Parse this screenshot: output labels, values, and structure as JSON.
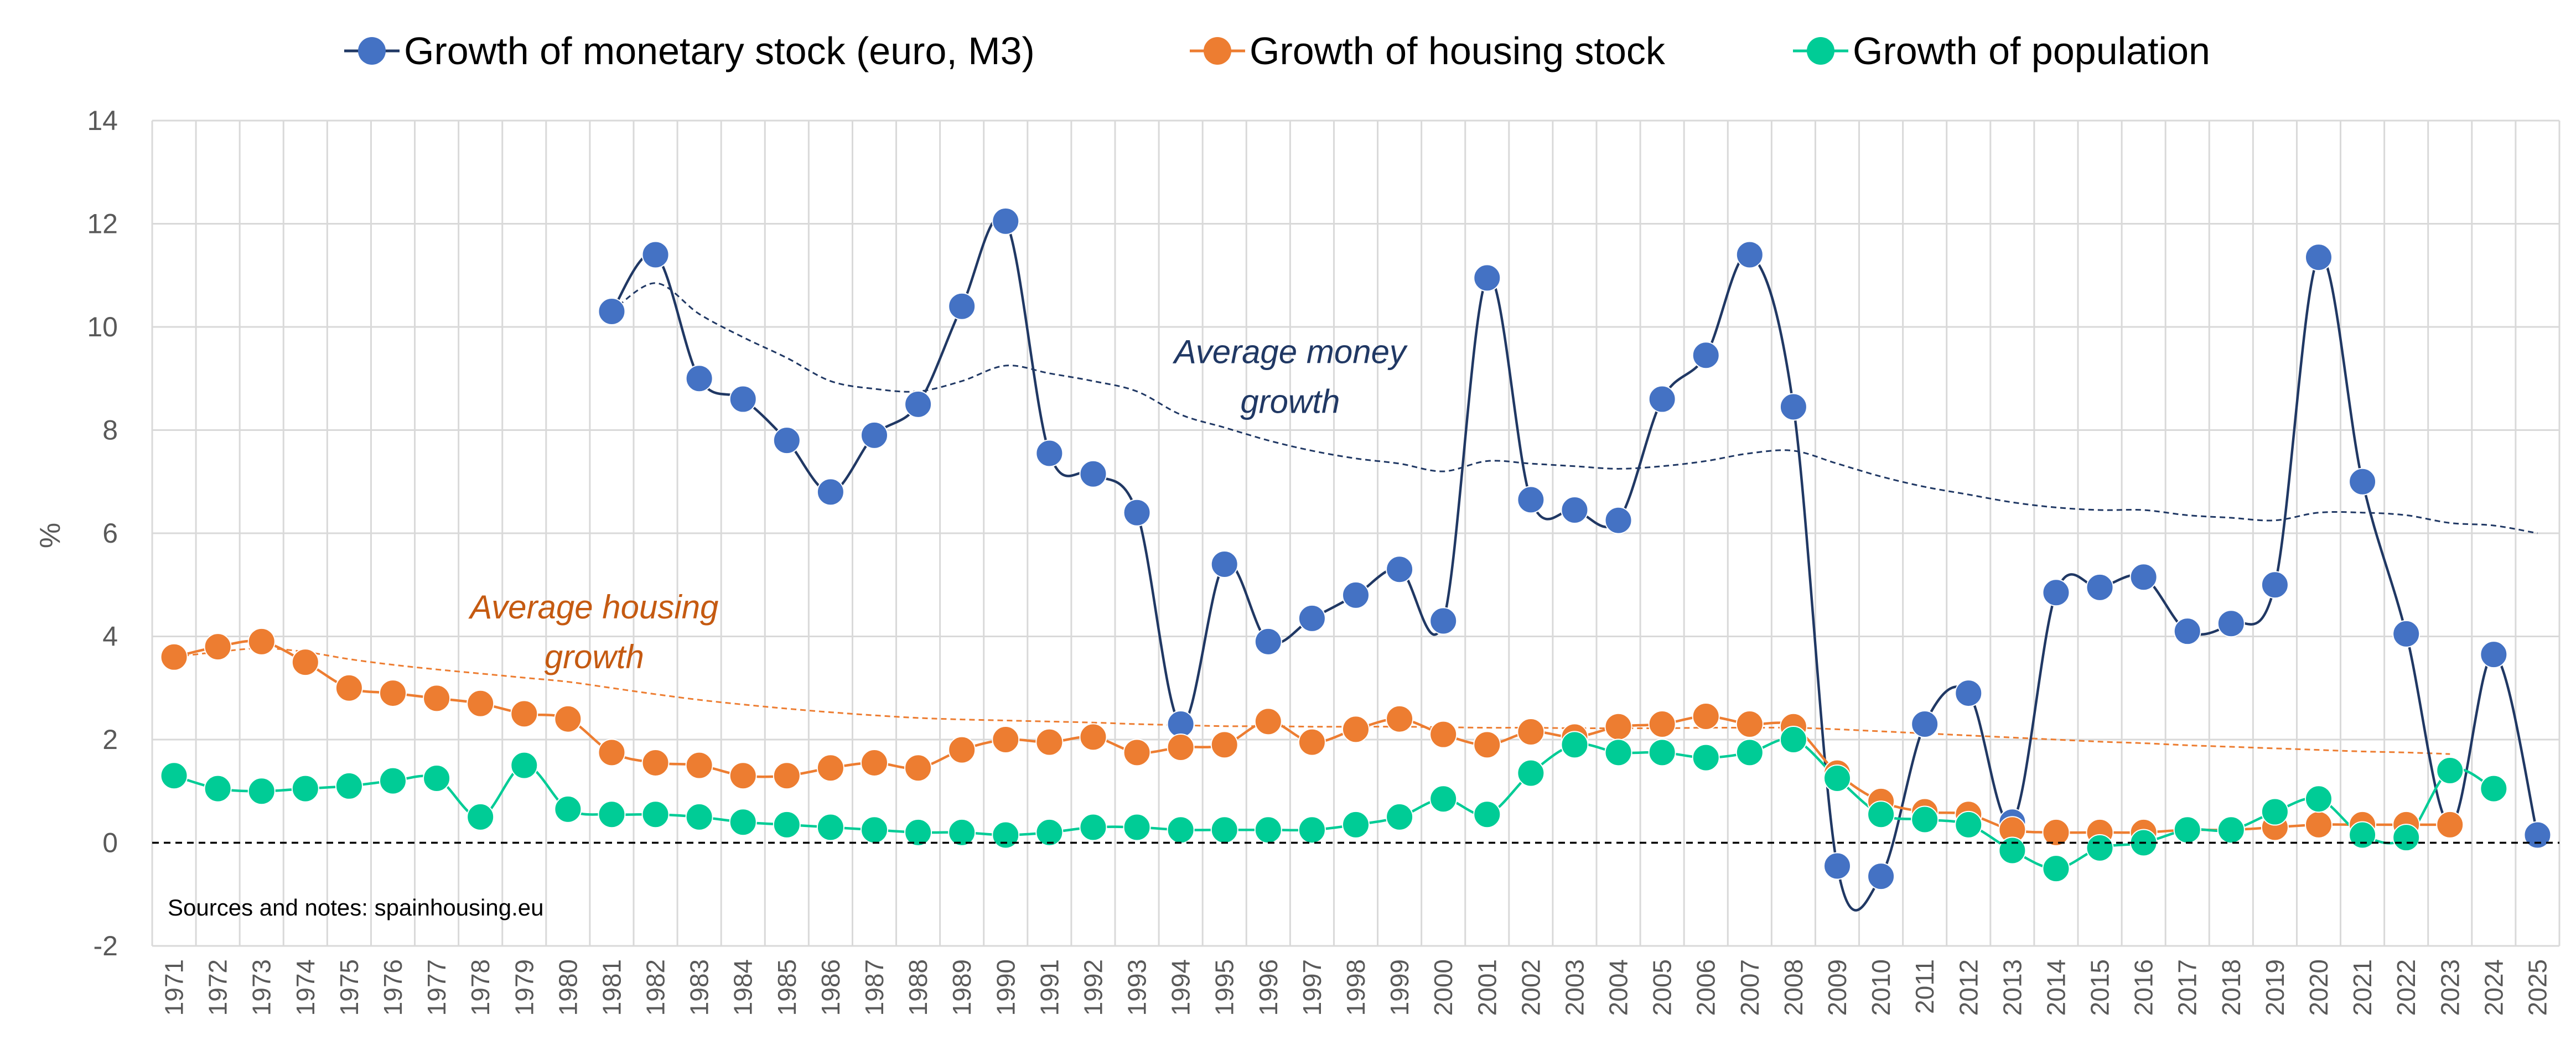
{
  "chart_data": {
    "type": "line",
    "ylabel": "%",
    "xlabel": "",
    "ylim": [
      -2,
      14
    ],
    "yticks": [
      -2,
      0,
      2,
      4,
      6,
      8,
      10,
      12,
      14
    ],
    "grid": true,
    "legend_position": "top",
    "zero_line": "dashed",
    "x": [
      1971,
      1972,
      1973,
      1974,
      1975,
      1976,
      1977,
      1978,
      1979,
      1980,
      1981,
      1982,
      1983,
      1984,
      1985,
      1986,
      1987,
      1988,
      1989,
      1990,
      1991,
      1992,
      1993,
      1994,
      1995,
      1996,
      1997,
      1998,
      1999,
      2000,
      2001,
      2002,
      2003,
      2004,
      2005,
      2006,
      2007,
      2008,
      2009,
      2010,
      2011,
      2012,
      2013,
      2014,
      2015,
      2016,
      2017,
      2018,
      2019,
      2020,
      2021,
      2022,
      2023,
      2024,
      2025
    ],
    "series": [
      {
        "name": "Growth of monetary stock (euro, M3)",
        "color": "#4472c4",
        "line_color": "#203864",
        "x": [
          1981,
          1982,
          1983,
          1984,
          1985,
          1986,
          1987,
          1988,
          1989,
          1990,
          1991,
          1992,
          1993,
          1994,
          1995,
          1996,
          1997,
          1998,
          1999,
          2000,
          2001,
          2002,
          2003,
          2004,
          2005,
          2006,
          2007,
          2008,
          2009,
          2010,
          2011,
          2012,
          2013,
          2014,
          2015,
          2016,
          2017,
          2018,
          2019,
          2020,
          2021,
          2022,
          2023,
          2024,
          2025
        ],
        "values": [
          10.3,
          11.4,
          9.0,
          8.6,
          7.8,
          6.8,
          7.9,
          8.5,
          10.4,
          12.05,
          7.55,
          7.15,
          6.4,
          2.3,
          5.4,
          3.9,
          4.35,
          4.8,
          5.3,
          4.3,
          10.95,
          6.65,
          6.45,
          6.25,
          8.6,
          9.45,
          11.4,
          8.45,
          -0.45,
          -0.65,
          2.3,
          2.9,
          0.4,
          4.85,
          4.95,
          5.15,
          4.1,
          4.25,
          5.0,
          11.35,
          7.0,
          4.05,
          0.35,
          3.65,
          0.15
        ]
      },
      {
        "name": "Growth of housing stock",
        "color": "#ed7d31",
        "line_color": "#ed7d31",
        "x": [
          1971,
          1972,
          1973,
          1974,
          1975,
          1976,
          1977,
          1978,
          1979,
          1980,
          1981,
          1982,
          1983,
          1984,
          1985,
          1986,
          1987,
          1988,
          1989,
          1990,
          1991,
          1992,
          1993,
          1994,
          1995,
          1996,
          1997,
          1998,
          1999,
          2000,
          2001,
          2002,
          2003,
          2004,
          2005,
          2006,
          2007,
          2008,
          2009,
          2010,
          2011,
          2012,
          2013,
          2014,
          2015,
          2016,
          2017,
          2018,
          2019,
          2020,
          2021,
          2022,
          2023
        ],
        "values": [
          3.6,
          3.8,
          3.9,
          3.5,
          3.0,
          2.9,
          2.8,
          2.7,
          2.5,
          2.4,
          1.75,
          1.55,
          1.5,
          1.3,
          1.3,
          1.45,
          1.55,
          1.45,
          1.8,
          2.0,
          1.95,
          2.05,
          1.75,
          1.85,
          1.9,
          2.35,
          1.95,
          2.2,
          2.4,
          2.1,
          1.9,
          2.15,
          2.05,
          2.25,
          2.3,
          2.45,
          2.3,
          2.25,
          1.35,
          0.8,
          0.6,
          0.55,
          0.25,
          0.2,
          0.2,
          0.2,
          0.25,
          0.25,
          0.3,
          0.35,
          0.35,
          0.35,
          0.35
        ]
      },
      {
        "name": "Growth of population",
        "color": "#00cc96",
        "line_color": "#00cc96",
        "x": [
          1971,
          1972,
          1973,
          1974,
          1975,
          1976,
          1977,
          1978,
          1979,
          1980,
          1981,
          1982,
          1983,
          1984,
          1985,
          1986,
          1987,
          1988,
          1989,
          1990,
          1991,
          1992,
          1993,
          1994,
          1995,
          1996,
          1997,
          1998,
          1999,
          2000,
          2001,
          2002,
          2003,
          2004,
          2005,
          2006,
          2007,
          2008,
          2009,
          2010,
          2011,
          2012,
          2013,
          2014,
          2015,
          2016,
          2017,
          2018,
          2019,
          2020,
          2021,
          2022,
          2023,
          2024
        ],
        "values": [
          1.3,
          1.05,
          1.0,
          1.05,
          1.1,
          1.2,
          1.25,
          0.5,
          1.5,
          0.65,
          0.55,
          0.55,
          0.5,
          0.4,
          0.35,
          0.3,
          0.25,
          0.2,
          0.2,
          0.15,
          0.2,
          0.3,
          0.3,
          0.25,
          0.25,
          0.25,
          0.25,
          0.35,
          0.5,
          0.85,
          0.55,
          1.35,
          1.9,
          1.75,
          1.75,
          1.65,
          1.75,
          2.0,
          1.25,
          0.55,
          0.45,
          0.35,
          -0.15,
          -0.5,
          -0.1,
          0.0,
          0.25,
          0.25,
          0.6,
          0.85,
          0.15,
          0.1,
          1.4,
          1.05
        ]
      }
    ],
    "averages": [
      {
        "label": "Average money growth",
        "label_lines": [
          "Average money",
          "growth"
        ],
        "color": "#203864",
        "label_color": "#203864",
        "label_anchor": [
          1996.5,
          9.3
        ],
        "x": [
          1981,
          1982,
          1983,
          1984,
          1985,
          1986,
          1987,
          1988,
          1989,
          1990,
          1991,
          1992,
          1993,
          1994,
          1995,
          1996,
          1997,
          1998,
          1999,
          2000,
          2001,
          2002,
          2003,
          2004,
          2005,
          2006,
          2007,
          2008,
          2009,
          2010,
          2011,
          2012,
          2013,
          2014,
          2015,
          2016,
          2017,
          2018,
          2019,
          2020,
          2021,
          2022,
          2023,
          2024,
          2025
        ],
        "values": [
          10.3,
          10.85,
          10.25,
          9.8,
          9.4,
          8.95,
          8.8,
          8.75,
          8.95,
          9.25,
          9.1,
          8.95,
          8.75,
          8.3,
          8.05,
          7.8,
          7.6,
          7.45,
          7.35,
          7.2,
          7.4,
          7.35,
          7.3,
          7.25,
          7.3,
          7.4,
          7.55,
          7.6,
          7.35,
          7.1,
          6.9,
          6.75,
          6.6,
          6.5,
          6.45,
          6.45,
          6.35,
          6.3,
          6.25,
          6.4,
          6.4,
          6.35,
          6.2,
          6.15,
          6.0
        ]
      },
      {
        "label": "Average housing growth",
        "label_lines": [
          "Average housing",
          "growth"
        ],
        "color": "#ed7d31",
        "label_color": "#c55a11",
        "label_anchor": [
          1980.6,
          4.35
        ],
        "x": [
          1971,
          1972,
          1973,
          1974,
          1975,
          1976,
          1977,
          1978,
          1979,
          1980,
          1981,
          1982,
          1983,
          1984,
          1985,
          1986,
          1987,
          1988,
          1989,
          1990,
          1991,
          1992,
          1993,
          1994,
          1995,
          1996,
          1997,
          1998,
          1999,
          2000,
          2001,
          2002,
          2003,
          2004,
          2005,
          2006,
          2007,
          2008,
          2009,
          2010,
          2011,
          2012,
          2013,
          2014,
          2015,
          2016,
          2017,
          2018,
          2019,
          2020,
          2021,
          2022,
          2023
        ],
        "values": [
          3.6,
          3.7,
          3.77,
          3.7,
          3.56,
          3.45,
          3.36,
          3.28,
          3.2,
          3.12,
          3.0,
          2.88,
          2.77,
          2.68,
          2.6,
          2.53,
          2.47,
          2.42,
          2.39,
          2.37,
          2.35,
          2.33,
          2.3,
          2.28,
          2.26,
          2.26,
          2.25,
          2.25,
          2.25,
          2.24,
          2.23,
          2.23,
          2.22,
          2.22,
          2.22,
          2.23,
          2.23,
          2.23,
          2.2,
          2.16,
          2.12,
          2.08,
          2.04,
          2.0,
          1.96,
          1.93,
          1.89,
          1.86,
          1.83,
          1.8,
          1.77,
          1.75,
          1.72
        ]
      }
    ],
    "note": "Sources and notes: spainhousing.eu"
  }
}
